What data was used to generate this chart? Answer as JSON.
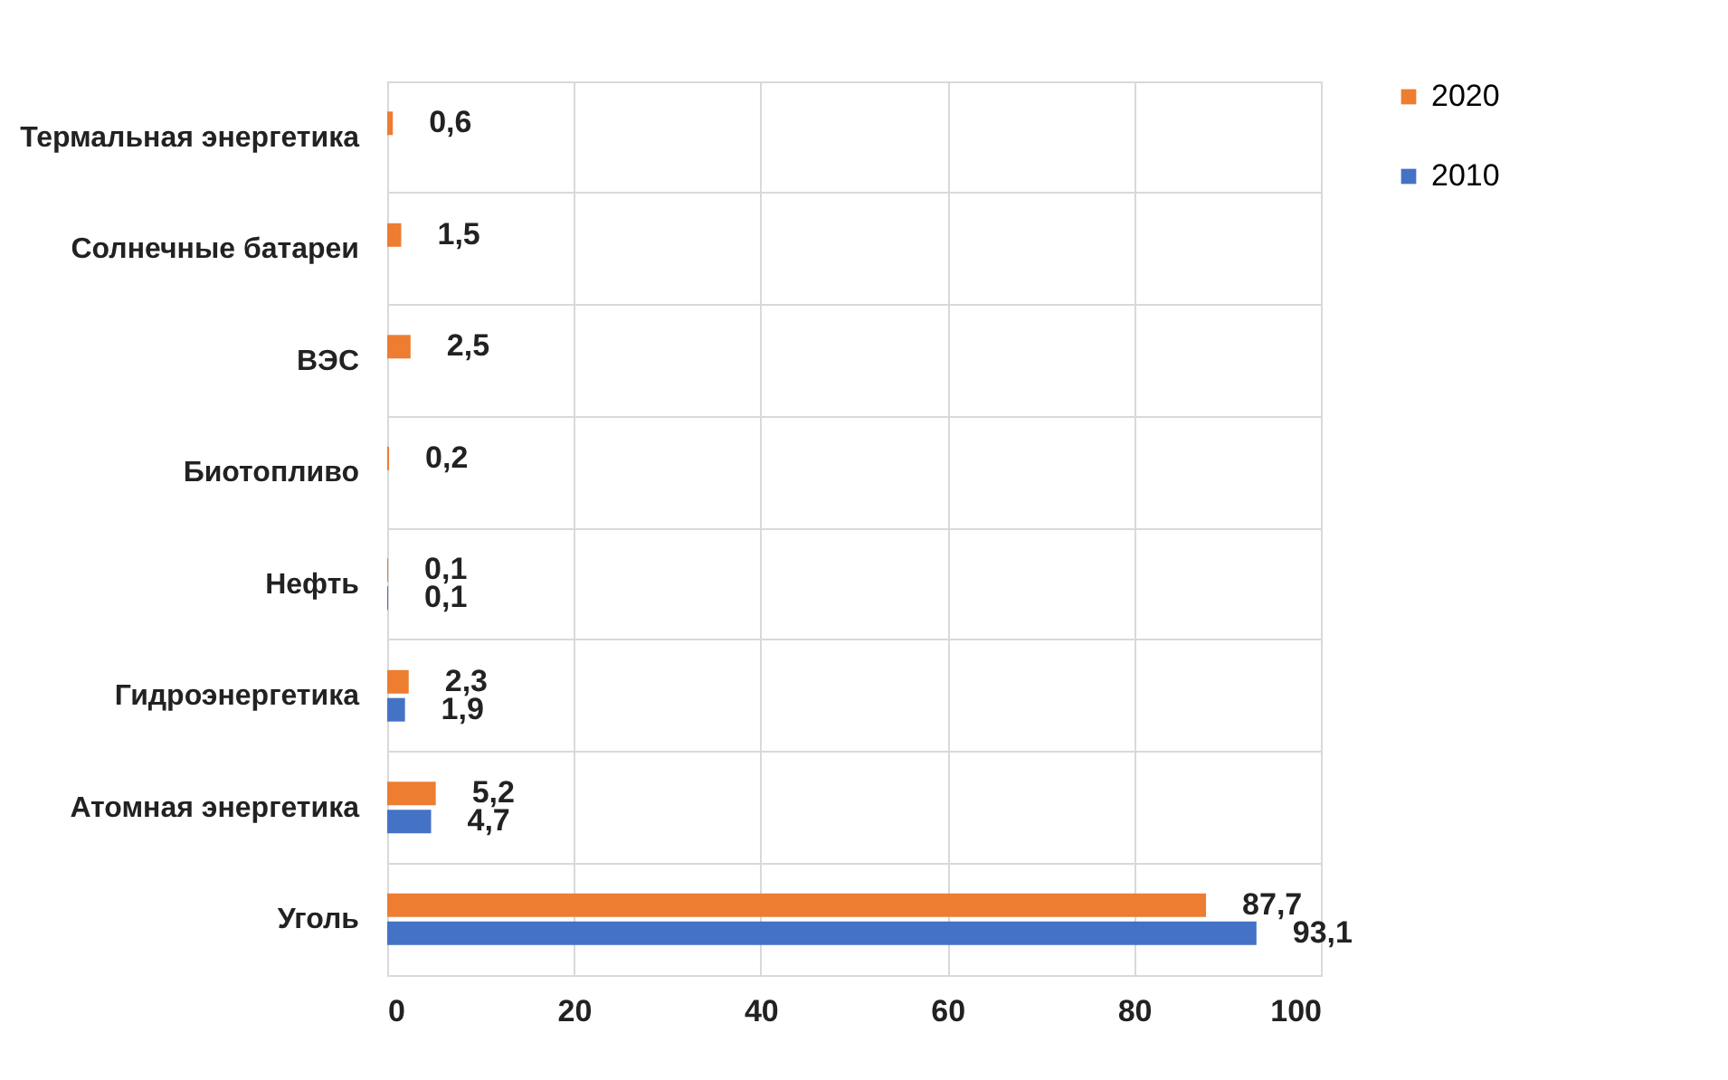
{
  "chart_data": {
    "type": "bar",
    "orientation": "horizontal",
    "categories": [
      "Термальная энергетика",
      "Солнечные батареи",
      "ВЭС",
      "Биотопливо",
      "Нефть",
      "Гидроэнергетика",
      "Атомная энергетика",
      "Уголь"
    ],
    "series": [
      {
        "name": "2020",
        "color": "#ed7d31",
        "values": [
          0.6,
          1.5,
          2.5,
          0.2,
          0.1,
          2.3,
          5.2,
          87.7
        ],
        "value_labels": [
          "0,6",
          "1,5",
          "2,5",
          "0,2",
          "0,1",
          "2,3",
          "5,2",
          "87,7"
        ]
      },
      {
        "name": "2010",
        "color": "#4472c4",
        "values": [
          null,
          null,
          null,
          null,
          0.1,
          1.9,
          4.7,
          93.1
        ],
        "value_labels": [
          null,
          null,
          null,
          null,
          "0,1",
          "1,9",
          "4,7",
          "93,1"
        ]
      }
    ],
    "xlim": [
      0,
      100
    ],
    "xticks": [
      0,
      20,
      40,
      60,
      80,
      100
    ],
    "grid": true,
    "legend": "right"
  }
}
